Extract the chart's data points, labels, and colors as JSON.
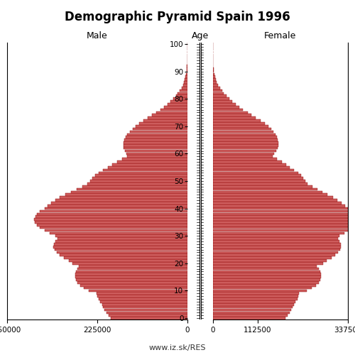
{
  "title": "Demographic Pyramid Spain 1996",
  "label_male": "Male",
  "label_female": "Female",
  "label_age": "Age",
  "source": "www.iz.sk/RES",
  "bar_color": "#CD5C5C",
  "bar_edge_color": "#8B0000",
  "bg_color": "#FFFFFF",
  "xlim_left": 450000,
  "xlim_right": 337500,
  "figsize": [
    5.0,
    5.0
  ],
  "dpi": 100,
  "male": [
    191000,
    197000,
    202000,
    207000,
    210000,
    213000,
    218000,
    222000,
    225000,
    227000,
    246000,
    258000,
    268000,
    275000,
    279000,
    280000,
    280000,
    278000,
    275000,
    271000,
    287000,
    295000,
    308000,
    318000,
    326000,
    332000,
    334000,
    333000,
    330000,
    325000,
    330000,
    343000,
    356000,
    368000,
    376000,
    381000,
    382000,
    380000,
    376000,
    369000,
    356000,
    349000,
    340000,
    330000,
    318000,
    305000,
    290000,
    277000,
    263000,
    249000,
    242000,
    237000,
    230000,
    221000,
    210000,
    199000,
    188000,
    175000,
    163000,
    150000,
    152000,
    156000,
    159000,
    160000,
    159000,
    157000,
    154000,
    150000,
    144000,
    137000,
    130000,
    120000,
    110000,
    99000,
    88000,
    78000,
    68000,
    58000,
    50000,
    42000,
    35000,
    29000,
    24000,
    19000,
    15000,
    11000,
    8500,
    6200,
    4500,
    3200,
    2200,
    1500,
    1000,
    650,
    400,
    250,
    150,
    90,
    50,
    25,
    10
  ],
  "female": [
    182000,
    187000,
    192000,
    196000,
    200000,
    203000,
    207000,
    211000,
    214000,
    216000,
    235000,
    248000,
    258000,
    265000,
    269000,
    271000,
    270000,
    268000,
    264000,
    260000,
    276000,
    284000,
    296000,
    305000,
    313000,
    318000,
    320000,
    319000,
    316000,
    312000,
    316000,
    329000,
    340000,
    351000,
    359000,
    363000,
    363000,
    360000,
    356000,
    349000,
    338000,
    330000,
    321000,
    311000,
    300000,
    287000,
    274000,
    262000,
    249000,
    237000,
    231000,
    226000,
    220000,
    213000,
    203000,
    193000,
    184000,
    172000,
    161000,
    150000,
    154000,
    158000,
    162000,
    163000,
    163000,
    162000,
    160000,
    157000,
    152000,
    146000,
    139000,
    130000,
    120000,
    108000,
    97000,
    87000,
    76000,
    66000,
    57000,
    49000,
    41000,
    34000,
    28000,
    23000,
    18000,
    14000,
    10500,
    7800,
    5700,
    4100,
    2900,
    2000,
    1400,
    900,
    580,
    360,
    220,
    130,
    75,
    40,
    18
  ]
}
